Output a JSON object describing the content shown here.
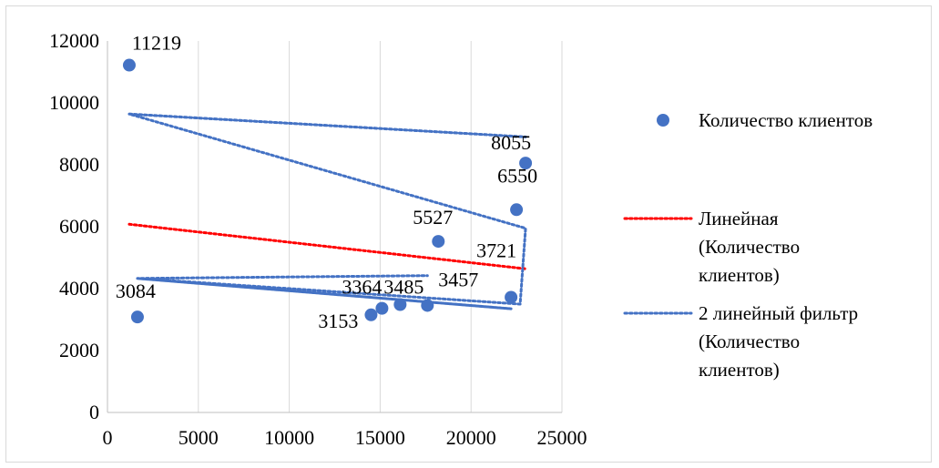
{
  "chart_data": {
    "type": "scatter",
    "title": "",
    "xlabel": "",
    "ylabel": "",
    "xlim": [
      0,
      25000
    ],
    "ylim": [
      0,
      12000
    ],
    "x_ticks": [
      "0",
      "5000",
      "10000",
      "15000",
      "20000",
      "25000"
    ],
    "y_ticks": [
      "0",
      "2000",
      "4000",
      "6000",
      "8000",
      "10000",
      "12000"
    ],
    "grid": "vertical",
    "legend_position": "right",
    "colors": {
      "points": "#4472c4",
      "linear_trend": "#ff0000",
      "moving_average": "#4472c4",
      "grid": "#d9d9d9"
    },
    "points": [
      {
        "x": 1200,
        "y": 11219,
        "label": "11219"
      },
      {
        "x": 1650,
        "y": 3084,
        "label": "3084"
      },
      {
        "x": 14500,
        "y": 3153,
        "label": "3153"
      },
      {
        "x": 15100,
        "y": 3364,
        "label": "3364"
      },
      {
        "x": 16100,
        "y": 3485,
        "label": "3485"
      },
      {
        "x": 17600,
        "y": 3457,
        "label": "3457"
      },
      {
        "x": 18200,
        "y": 5527,
        "label": "5527"
      },
      {
        "x": 22200,
        "y": 3721,
        "label": "3721"
      },
      {
        "x": 22500,
        "y": 6550,
        "label": "6550"
      },
      {
        "x": 23000,
        "y": 8055,
        "label": "8055"
      }
    ],
    "linear_trend": [
      {
        "x": 1200,
        "y": 6080
      },
      {
        "x": 23000,
        "y": 4640
      }
    ],
    "moving_average": [
      {
        "x": 1200,
        "y": 9640
      },
      {
        "x": 23000,
        "y": 8900
      },
      {
        "x": 1200,
        "y": 9640
      },
      {
        "x": 23000,
        "y": 5950
      },
      {
        "x": 22700,
        "y": 3500
      },
      {
        "x": 1650,
        "y": 4330
      },
      {
        "x": 22200,
        "y": 3350
      },
      {
        "x": 1650,
        "y": 4330
      },
      {
        "x": 17600,
        "y": 4420
      }
    ],
    "legend": [
      {
        "type": "marker",
        "lines": [
          "Количество клиентов"
        ]
      },
      {
        "type": "linear",
        "lines": [
          "Линейная",
          "(Количество",
          "клиентов)"
        ]
      },
      {
        "type": "moving",
        "lines": [
          "2 линейный фильтр",
          "(Количество",
          "клиентов)"
        ]
      }
    ]
  }
}
